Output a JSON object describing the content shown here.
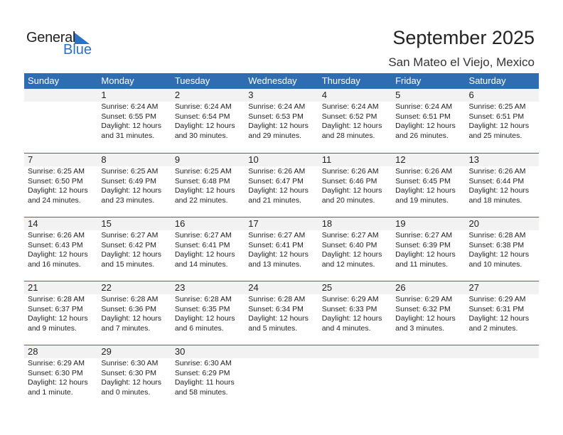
{
  "logo": {
    "text1": "General",
    "text2": "Blue"
  },
  "title": "September 2025",
  "location": "San Mateo el Viejo, Mexico",
  "colors": {
    "header": "#2f6db3",
    "date_band": "#f2f2f2",
    "logo_blue": "#2b72c2"
  },
  "days": [
    "Sunday",
    "Monday",
    "Tuesday",
    "Wednesday",
    "Thursday",
    "Friday",
    "Saturday"
  ],
  "weeks": [
    [
      null,
      {
        "day": "1",
        "sunrise": "Sunrise: 6:24 AM",
        "sunset": "Sunset: 6:55 PM",
        "daylight": "Daylight: 12 hours",
        "minutes": "and 31 minutes."
      },
      {
        "day": "2",
        "sunrise": "Sunrise: 6:24 AM",
        "sunset": "Sunset: 6:54 PM",
        "daylight": "Daylight: 12 hours",
        "minutes": "and 30 minutes."
      },
      {
        "day": "3",
        "sunrise": "Sunrise: 6:24 AM",
        "sunset": "Sunset: 6:53 PM",
        "daylight": "Daylight: 12 hours",
        "minutes": "and 29 minutes."
      },
      {
        "day": "4",
        "sunrise": "Sunrise: 6:24 AM",
        "sunset": "Sunset: 6:52 PM",
        "daylight": "Daylight: 12 hours",
        "minutes": "and 28 minutes."
      },
      {
        "day": "5",
        "sunrise": "Sunrise: 6:24 AM",
        "sunset": "Sunset: 6:51 PM",
        "daylight": "Daylight: 12 hours",
        "minutes": "and 26 minutes."
      },
      {
        "day": "6",
        "sunrise": "Sunrise: 6:25 AM",
        "sunset": "Sunset: 6:51 PM",
        "daylight": "Daylight: 12 hours",
        "minutes": "and 25 minutes."
      }
    ],
    [
      {
        "day": "7",
        "sunrise": "Sunrise: 6:25 AM",
        "sunset": "Sunset: 6:50 PM",
        "daylight": "Daylight: 12 hours",
        "minutes": "and 24 minutes."
      },
      {
        "day": "8",
        "sunrise": "Sunrise: 6:25 AM",
        "sunset": "Sunset: 6:49 PM",
        "daylight": "Daylight: 12 hours",
        "minutes": "and 23 minutes."
      },
      {
        "day": "9",
        "sunrise": "Sunrise: 6:25 AM",
        "sunset": "Sunset: 6:48 PM",
        "daylight": "Daylight: 12 hours",
        "minutes": "and 22 minutes."
      },
      {
        "day": "10",
        "sunrise": "Sunrise: 6:26 AM",
        "sunset": "Sunset: 6:47 PM",
        "daylight": "Daylight: 12 hours",
        "minutes": "and 21 minutes."
      },
      {
        "day": "11",
        "sunrise": "Sunrise: 6:26 AM",
        "sunset": "Sunset: 6:46 PM",
        "daylight": "Daylight: 12 hours",
        "minutes": "and 20 minutes."
      },
      {
        "day": "12",
        "sunrise": "Sunrise: 6:26 AM",
        "sunset": "Sunset: 6:45 PM",
        "daylight": "Daylight: 12 hours",
        "minutes": "and 19 minutes."
      },
      {
        "day": "13",
        "sunrise": "Sunrise: 6:26 AM",
        "sunset": "Sunset: 6:44 PM",
        "daylight": "Daylight: 12 hours",
        "minutes": "and 18 minutes."
      }
    ],
    [
      {
        "day": "14",
        "sunrise": "Sunrise: 6:26 AM",
        "sunset": "Sunset: 6:43 PM",
        "daylight": "Daylight: 12 hours",
        "minutes": "and 16 minutes."
      },
      {
        "day": "15",
        "sunrise": "Sunrise: 6:27 AM",
        "sunset": "Sunset: 6:42 PM",
        "daylight": "Daylight: 12 hours",
        "minutes": "and 15 minutes."
      },
      {
        "day": "16",
        "sunrise": "Sunrise: 6:27 AM",
        "sunset": "Sunset: 6:41 PM",
        "daylight": "Daylight: 12 hours",
        "minutes": "and 14 minutes."
      },
      {
        "day": "17",
        "sunrise": "Sunrise: 6:27 AM",
        "sunset": "Sunset: 6:41 PM",
        "daylight": "Daylight: 12 hours",
        "minutes": "and 13 minutes."
      },
      {
        "day": "18",
        "sunrise": "Sunrise: 6:27 AM",
        "sunset": "Sunset: 6:40 PM",
        "daylight": "Daylight: 12 hours",
        "minutes": "and 12 minutes."
      },
      {
        "day": "19",
        "sunrise": "Sunrise: 6:27 AM",
        "sunset": "Sunset: 6:39 PM",
        "daylight": "Daylight: 12 hours",
        "minutes": "and 11 minutes."
      },
      {
        "day": "20",
        "sunrise": "Sunrise: 6:28 AM",
        "sunset": "Sunset: 6:38 PM",
        "daylight": "Daylight: 12 hours",
        "minutes": "and 10 minutes."
      }
    ],
    [
      {
        "day": "21",
        "sunrise": "Sunrise: 6:28 AM",
        "sunset": "Sunset: 6:37 PM",
        "daylight": "Daylight: 12 hours",
        "minutes": "and 9 minutes."
      },
      {
        "day": "22",
        "sunrise": "Sunrise: 6:28 AM",
        "sunset": "Sunset: 6:36 PM",
        "daylight": "Daylight: 12 hours",
        "minutes": "and 7 minutes."
      },
      {
        "day": "23",
        "sunrise": "Sunrise: 6:28 AM",
        "sunset": "Sunset: 6:35 PM",
        "daylight": "Daylight: 12 hours",
        "minutes": "and 6 minutes."
      },
      {
        "day": "24",
        "sunrise": "Sunrise: 6:28 AM",
        "sunset": "Sunset: 6:34 PM",
        "daylight": "Daylight: 12 hours",
        "minutes": "and 5 minutes."
      },
      {
        "day": "25",
        "sunrise": "Sunrise: 6:29 AM",
        "sunset": "Sunset: 6:33 PM",
        "daylight": "Daylight: 12 hours",
        "minutes": "and 4 minutes."
      },
      {
        "day": "26",
        "sunrise": "Sunrise: 6:29 AM",
        "sunset": "Sunset: 6:32 PM",
        "daylight": "Daylight: 12 hours",
        "minutes": "and 3 minutes."
      },
      {
        "day": "27",
        "sunrise": "Sunrise: 6:29 AM",
        "sunset": "Sunset: 6:31 PM",
        "daylight": "Daylight: 12 hours",
        "minutes": "and 2 minutes."
      }
    ],
    [
      {
        "day": "28",
        "sunrise": "Sunrise: 6:29 AM",
        "sunset": "Sunset: 6:30 PM",
        "daylight": "Daylight: 12 hours",
        "minutes": "and 1 minute."
      },
      {
        "day": "29",
        "sunrise": "Sunrise: 6:30 AM",
        "sunset": "Sunset: 6:30 PM",
        "daylight": "Daylight: 12 hours",
        "minutes": "and 0 minutes."
      },
      {
        "day": "30",
        "sunrise": "Sunrise: 6:30 AM",
        "sunset": "Sunset: 6:29 PM",
        "daylight": "Daylight: 11 hours",
        "minutes": "and 58 minutes."
      },
      null,
      null,
      null,
      null
    ]
  ]
}
